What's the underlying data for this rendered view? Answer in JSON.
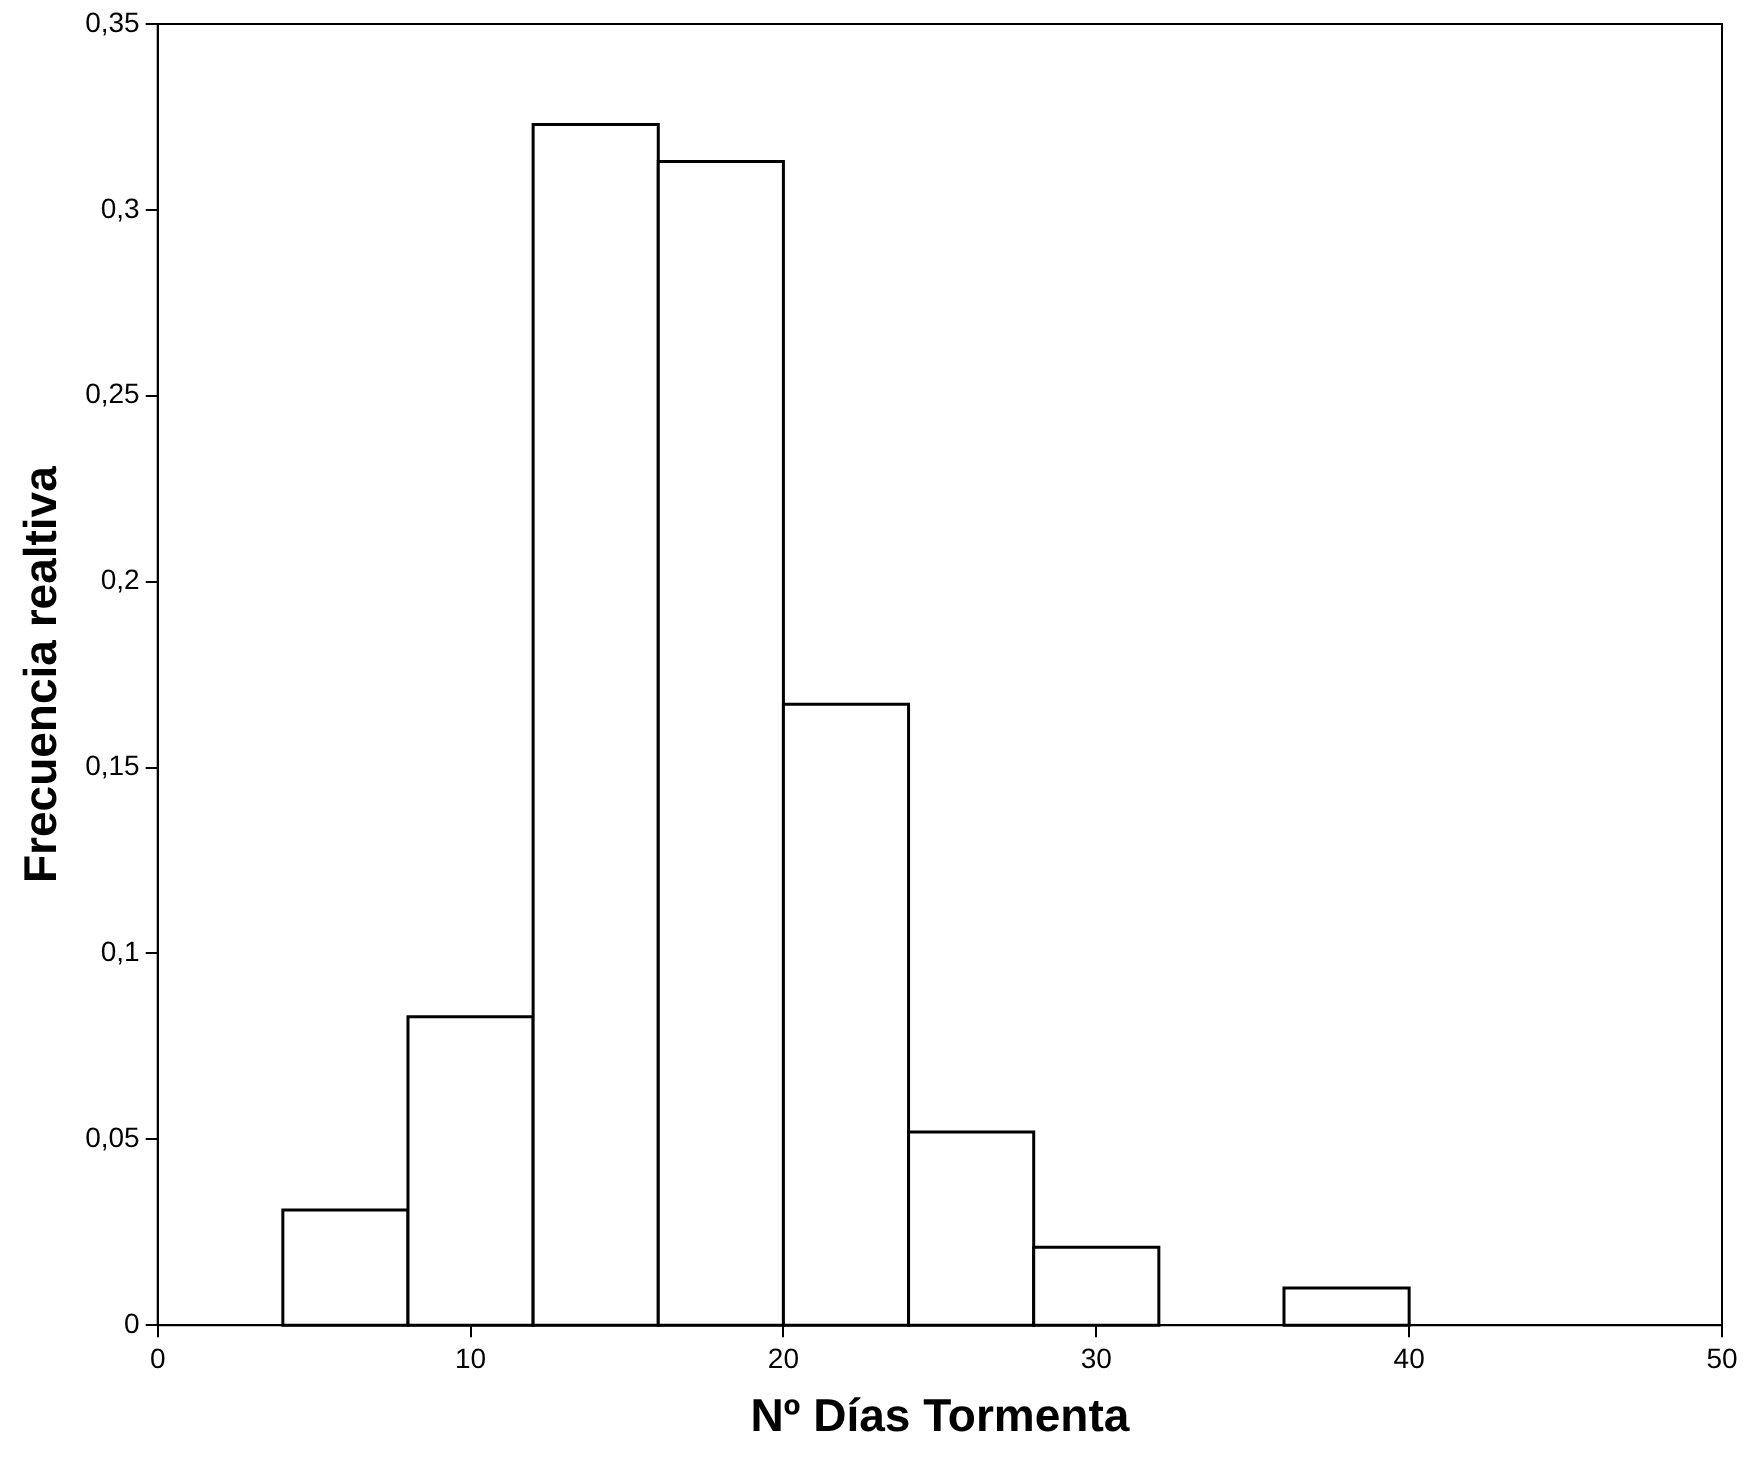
{
  "chart_data": {
    "type": "histogram",
    "xlabel": "Nº Días Tormenta",
    "ylabel": "Frecuencia realtiva",
    "bins": [
      4,
      8,
      12,
      16,
      20,
      24,
      28,
      32,
      36,
      40
    ],
    "values": [
      0.031,
      0.083,
      0.323,
      0.313,
      0.167,
      0.052,
      0.021,
      0,
      0.01
    ],
    "color": "#ffffff",
    "xlim": [
      0,
      50
    ],
    "xticks": [
      0,
      10,
      20,
      30,
      40,
      50
    ],
    "ylim": [
      0,
      0.35
    ],
    "yticks": [
      0,
      {
        "value": 0.05,
        "label": "0,05"
      },
      {
        "value": 0.1,
        "label": "0,1"
      },
      {
        "value": 0.15,
        "label": "0,15"
      },
      {
        "value": 0.2,
        "label": "0,2"
      },
      {
        "value": 0.25,
        "label": "0,25"
      },
      {
        "value": 0.3,
        "label": "0,3"
      },
      {
        "value": 0.35,
        "label": "0,35"
      }
    ],
    "grid": false,
    "legend": false
  }
}
